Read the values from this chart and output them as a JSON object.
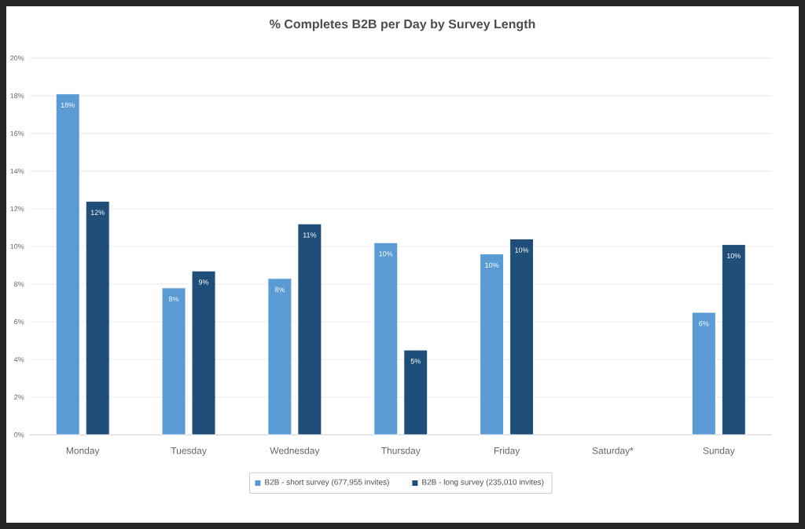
{
  "chart_data": {
    "type": "bar",
    "title": "% Completes B2B per Day by Survey Length",
    "categories": [
      "Monday",
      "Tuesday",
      "Wednesday",
      "Thursday",
      "Friday",
      "Saturday*",
      "Sunday"
    ],
    "series": [
      {
        "name": "B2B - short survey (677,955 invites)",
        "color": "#5b9bd5",
        "values": [
          18.1,
          7.8,
          8.3,
          10.2,
          9.6,
          null,
          6.5
        ],
        "value_labels": [
          "18%",
          "8%",
          "8%",
          "10%",
          "10%",
          null,
          "6%"
        ]
      },
      {
        "name": "B2B - long survey (235,010 invites)",
        "color": "#1f4e79",
        "values": [
          12.4,
          8.7,
          11.2,
          4.5,
          10.4,
          null,
          10.1
        ],
        "value_labels": [
          "12%",
          "9%",
          "11%",
          "5%",
          "10%",
          null,
          "10%"
        ]
      }
    ],
    "ylim": [
      0,
      20
    ],
    "yticks": [
      {
        "value": 0,
        "label": "0%"
      },
      {
        "value": 2,
        "label": "2%"
      },
      {
        "value": 4,
        "label": "4%"
      },
      {
        "value": 6,
        "label": "6%"
      },
      {
        "value": 8,
        "label": "8%"
      },
      {
        "value": 10,
        "label": "10%"
      },
      {
        "value": 12,
        "label": "12%"
      },
      {
        "value": 14,
        "label": "14%"
      },
      {
        "value": 16,
        "label": "16%"
      },
      {
        "value": 18,
        "label": "18%"
      },
      {
        "value": 20,
        "label": "20%"
      }
    ],
    "grid": "y",
    "legend": "bottom"
  }
}
